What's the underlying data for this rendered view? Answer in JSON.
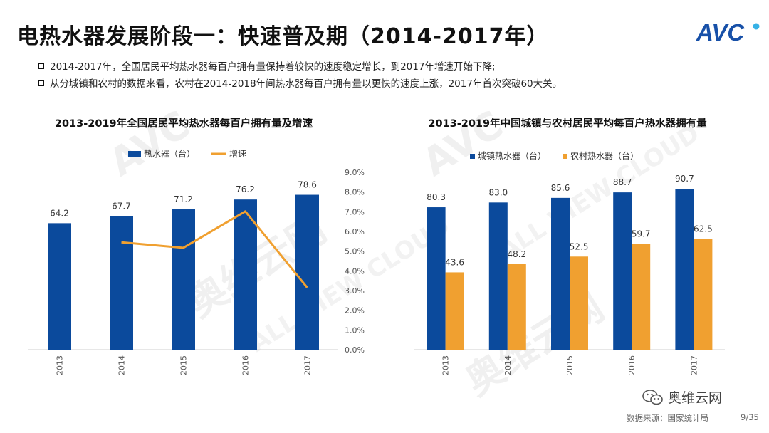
{
  "title": "电热水器发展阶段一：快速普及期（2014-2017年）",
  "logo_text": "AVC",
  "bullets": [
    "2014-2017年，全国居民平均热水器每百户拥有量保持着较快的速度稳定增长，到2017年增速开始下降;",
    "从分城镇和农村的数据来看，农村在2014-2018年间热水器每百户拥有量以更快的速度上涨，2017年首次突破60大关。"
  ],
  "watermark": {
    "brand": "AVC",
    "cn": "奥维云网",
    "en": "ALL VIEW CLOUD"
  },
  "chart_data": [
    {
      "type": "bar",
      "title": "2013-2019年全国居民平均热水器每百户拥有量及增速",
      "categories": [
        "2013",
        "2014",
        "2015",
        "2016",
        "2017"
      ],
      "series": [
        {
          "name": "热水器（台）",
          "type": "bar",
          "values": [
            64.2,
            67.7,
            71.2,
            76.2,
            78.6
          ],
          "labels": [
            "64.2",
            "67.7",
            "71.2",
            "76.2",
            "78.6"
          ],
          "color": "#0b4a9c"
        },
        {
          "name": "增速",
          "type": "line",
          "axis": "right",
          "values": [
            null,
            5.45,
            5.17,
            7.02,
            3.15
          ],
          "color": "#f0a030"
        }
      ],
      "y2_ticks": [
        "9.0%",
        "8.0%",
        "7.0%",
        "6.0%",
        "5.0%",
        "4.0%",
        "3.0%",
        "2.0%",
        "1.0%",
        "0.0%"
      ],
      "y2lim": [
        0,
        9
      ],
      "ylim": [
        0,
        90
      ],
      "legend_position": "top-left"
    },
    {
      "type": "bar",
      "title": "2013-2019年中国城镇与农村居民平均每百户热水器拥有量",
      "categories": [
        "2013",
        "2014",
        "2015",
        "2016",
        "2017"
      ],
      "series": [
        {
          "name": "城镇热水器（台）",
          "values": [
            80.3,
            83.0,
            85.6,
            88.7,
            90.7
          ],
          "labels": [
            "80.3",
            "83.0",
            "85.6",
            "88.7",
            "90.7"
          ],
          "color": "#0b4a9c"
        },
        {
          "name": "农村热水器（台）",
          "values": [
            43.6,
            48.2,
            52.5,
            59.7,
            62.5
          ],
          "labels": [
            "43.6",
            "48.2",
            "52.5",
            "59.7",
            "62.5"
          ],
          "color": "#f0a030"
        }
      ],
      "ylim": [
        0,
        100
      ],
      "legend_position": "top-left"
    }
  ],
  "wechat_name": "奥维云网",
  "source": "数据来源：国家统计局",
  "page": "9/35"
}
